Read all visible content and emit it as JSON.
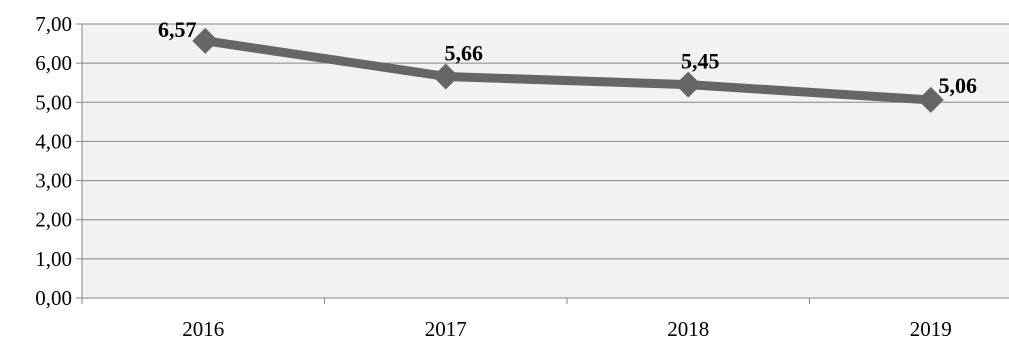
{
  "chart_data": {
    "type": "line",
    "title": "",
    "xlabel": "",
    "ylabel": "",
    "categories": [
      "2016",
      "2017",
      "2018",
      "2019"
    ],
    "series": [
      {
        "values": [
          6.57,
          5.66,
          5.45,
          5.06
        ],
        "data_labels": [
          "6,57",
          "5,66",
          "5,45",
          "5,06"
        ],
        "color": "#666666",
        "marker": "diamond"
      }
    ],
    "ylim": [
      0,
      7
    ],
    "y_ticks": [
      0,
      1,
      2,
      3,
      4,
      5,
      6,
      7
    ],
    "y_tick_labels": [
      "0,00",
      "1,00",
      "2,00",
      "3,00",
      "4,00",
      "5,00",
      "6,00",
      "7,00"
    ],
    "grid": true,
    "plot_background": "#f2f2f2",
    "gridline_color": "#868686",
    "legend": "none"
  }
}
